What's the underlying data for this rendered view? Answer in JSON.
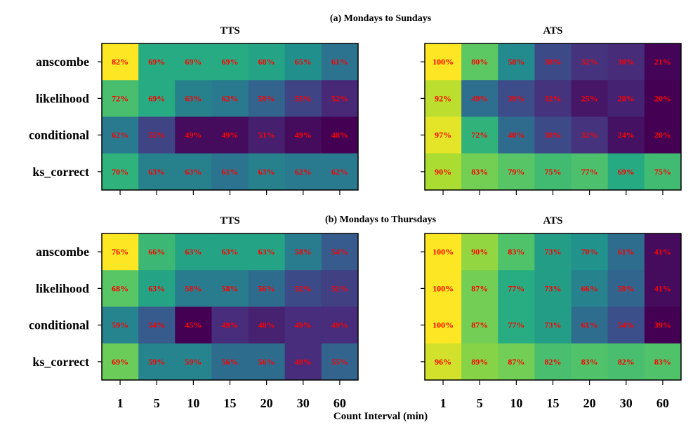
{
  "chart_data": [
    {
      "type": "heatmap",
      "group_title": "(a) Mondays to Sundays",
      "panels": [
        {
          "title": "TTS",
          "rows": [
            "anscombe",
            "likelihood",
            "conditional",
            "ks_correct"
          ],
          "columns": [
            "1",
            "5",
            "10",
            "15",
            "20",
            "30",
            "60"
          ],
          "values": [
            [
              82,
              69,
              69,
              69,
              68,
              65,
              61
            ],
            [
              72,
              69,
              63,
              62,
              59,
              55,
              52
            ],
            [
              62,
              55,
              49,
              49,
              51,
              49,
              48
            ],
            [
              70,
              63,
              63,
              61,
              63,
              62,
              62
            ]
          ],
          "labels": [
            [
              "82%",
              "69%",
              "69%",
              "69%",
              "68%",
              "65%",
              "61%"
            ],
            [
              "72%",
              "69%",
              "63%",
              "62%",
              "59%",
              "55%",
              "52%"
            ],
            [
              "62%",
              "55%",
              "49%",
              "49%",
              "51%",
              "49%",
              "48%"
            ],
            [
              "70%",
              "63%",
              "63%",
              "61%",
              "63%",
              "62%",
              "62%"
            ]
          ]
        },
        {
          "title": "ATS",
          "rows": [
            "anscombe",
            "likelihood",
            "conditional",
            "ks_correct"
          ],
          "columns": [
            "1",
            "5",
            "10",
            "15",
            "20",
            "30",
            "60"
          ],
          "values": [
            [
              100,
              80,
              58,
              38,
              32,
              30,
              21
            ],
            [
              92,
              49,
              39,
              32,
              25,
              28,
              20
            ],
            [
              97,
              72,
              48,
              38,
              32,
              24,
              20
            ],
            [
              90,
              83,
              79,
              75,
              77,
              69,
              75
            ]
          ],
          "labels": [
            [
              "100%",
              "80%",
              "58%",
              "38%",
              "32%",
              "30%",
              "21%"
            ],
            [
              "92%",
              "49%",
              "39%",
              "32%",
              "25%",
              "28%",
              "20%"
            ],
            [
              "97%",
              "72%",
              "48%",
              "38%",
              "32%",
              "24%",
              "20%"
            ],
            [
              "90%",
              "83%",
              "79%",
              "75%",
              "77%",
              "69%",
              "75%"
            ]
          ]
        }
      ]
    },
    {
      "type": "heatmap",
      "group_title": "(b) Mondays to Thursdays",
      "panels": [
        {
          "title": "TTS",
          "rows": [
            "anscombe",
            "likelihood",
            "conditional",
            "ks_correct"
          ],
          "columns": [
            "1",
            "5",
            "10",
            "15",
            "20",
            "30",
            "60"
          ],
          "values": [
            [
              76,
              66,
              63,
              63,
              63,
              58,
              54
            ],
            [
              68,
              63,
              58,
              58,
              56,
              52,
              51
            ],
            [
              59,
              54,
              45,
              49,
              48,
              49,
              49
            ],
            [
              69,
              59,
              59,
              56,
              56,
              49,
              55
            ]
          ],
          "labels": [
            [
              "76%",
              "66%",
              "63%",
              "63%",
              "63%",
              "58%",
              "54%"
            ],
            [
              "68%",
              "63%",
              "58%",
              "58%",
              "56%",
              "52%",
              "51%"
            ],
            [
              "59%",
              "54%",
              "45%",
              "49%",
              "48%",
              "49%",
              "49%"
            ],
            [
              "69%",
              "59%",
              "59%",
              "56%",
              "56%",
              "49%",
              "55%"
            ]
          ]
        },
        {
          "title": "ATS",
          "rows": [
            "anscombe",
            "likelihood",
            "conditional",
            "ks_correct"
          ],
          "columns": [
            "1",
            "5",
            "10",
            "15",
            "20",
            "30",
            "60"
          ],
          "values": [
            [
              100,
              90,
              83,
              73,
              70,
              61,
              41
            ],
            [
              100,
              87,
              77,
              73,
              66,
              59,
              41
            ],
            [
              100,
              87,
              77,
              73,
              61,
              54,
              39
            ],
            [
              96,
              89,
              87,
              82,
              83,
              82,
              83
            ]
          ],
          "labels": [
            [
              "100%",
              "90%",
              "83%",
              "73%",
              "70%",
              "61%",
              "41%"
            ],
            [
              "100%",
              "87%",
              "77%",
              "73%",
              "66%",
              "59%",
              "41%"
            ],
            [
              "100%",
              "87%",
              "77%",
              "73%",
              "61%",
              "54%",
              "39%"
            ],
            [
              "96%",
              "89%",
              "87%",
              "82%",
              "83%",
              "82%",
              "83%"
            ]
          ]
        }
      ]
    }
  ],
  "xlabel": "Count Interval (min)",
  "colormap": "viridis",
  "annotation_color": "#ff0000"
}
